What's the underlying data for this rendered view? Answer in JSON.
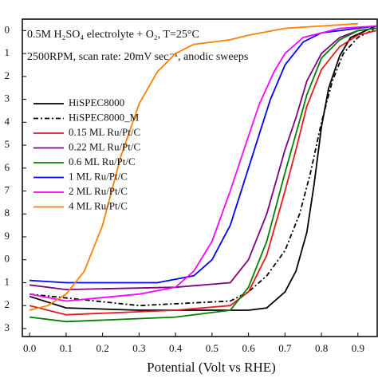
{
  "chart_data": {
    "type": "line",
    "annotations": [
      "0.5M H₂SO₄ electrolyte + O₂, T=25°C",
      "2500RPM, scan rate: 20mV sec⁻¹, anodic sweeps"
    ],
    "x_label": "Potential (Volt vs RHE)",
    "xlim": [
      -0.02,
      0.955
    ],
    "ylim": [
      -1.335,
      0.05
    ],
    "xticks": [
      {
        "value": 0,
        "label": "0.0"
      },
      0.1,
      0.2,
      0.3,
      0.4,
      0.5,
      0.6,
      0.7,
      0.8,
      0.9
    ],
    "yticks": [
      0,
      {
        "value": -0.1,
        "label": "1"
      },
      {
        "value": -0.2,
        "label": "2"
      },
      {
        "value": -0.3,
        "label": "3"
      },
      {
        "value": -0.4,
        "label": "4"
      },
      {
        "value": -0.5,
        "label": "5"
      },
      {
        "value": -0.6,
        "label": "6"
      },
      {
        "value": -0.7,
        "label": "7"
      },
      {
        "value": -0.8,
        "label": "8"
      },
      {
        "value": -0.9,
        "label": "9"
      },
      {
        "value": -1.0,
        "label": "0"
      },
      {
        "value": -1.1,
        "label": "1"
      },
      {
        "value": -1.2,
        "label": "2"
      },
      {
        "value": -1.3,
        "label": "3"
      }
    ],
    "legend": "center-left",
    "series": [
      {
        "name": "HiSPEC8000",
        "color": "#000000",
        "linestyle": "solid",
        "x": [
          0,
          0.1,
          0.3,
          0.6,
          0.65,
          0.7,
          0.73,
          0.76,
          0.78,
          0.8,
          0.82,
          0.85,
          0.88,
          0.95
        ],
        "values": [
          -1.16,
          -1.21,
          -1.22,
          -1.22,
          -1.21,
          -1.14,
          -1.05,
          -0.88,
          -0.67,
          -0.42,
          -0.25,
          -0.11,
          -0.03,
          0.02
        ]
      },
      {
        "name": "HiSPEC8000_M",
        "color": "#000000",
        "linestyle": "dashdot",
        "x": [
          0,
          0.3,
          0.55,
          0.6,
          0.65,
          0.7,
          0.74,
          0.77,
          0.8,
          0.83,
          0.86,
          0.9,
          0.95
        ],
        "values": [
          -1.15,
          -1.2,
          -1.18,
          -1.14,
          -1.07,
          -0.96,
          -0.8,
          -0.62,
          -0.4,
          -0.22,
          -0.1,
          -0.03,
          0.01
        ]
      },
      {
        "name": "0.15 ML Ru/Pt/C",
        "color": "#e41a1c",
        "linestyle": "solid",
        "x": [
          0,
          0.1,
          0.4,
          0.55,
          0.6,
          0.65,
          0.7,
          0.73,
          0.76,
          0.8,
          0.85,
          0.9,
          0.95
        ],
        "values": [
          -1.2,
          -1.24,
          -1.22,
          -1.2,
          -1.14,
          -0.98,
          -0.7,
          -0.52,
          -0.33,
          -0.17,
          -0.07,
          -0.02,
          0
        ]
      },
      {
        "name": "0.22 ML Ru/Pt/C",
        "color": "#800080",
        "linestyle": "solid",
        "x": [
          0,
          0.1,
          0.4,
          0.55,
          0.6,
          0.65,
          0.7,
          0.73,
          0.76,
          0.8,
          0.85,
          0.9,
          0.95
        ],
        "values": [
          -1.11,
          -1.13,
          -1.12,
          -1.1,
          -1.0,
          -0.8,
          -0.52,
          -0.38,
          -0.22,
          -0.1,
          -0.03,
          0,
          0.01
        ]
      },
      {
        "name": "0.6 ML Ru/Pt/C",
        "color": "#008000",
        "linestyle": "solid",
        "x": [
          0,
          0.1,
          0.4,
          0.55,
          0.6,
          0.65,
          0.7,
          0.73,
          0.76,
          0.8,
          0.85,
          0.9,
          0.95
        ],
        "values": [
          -1.25,
          -1.27,
          -1.25,
          -1.22,
          -1.12,
          -0.92,
          -0.62,
          -0.45,
          -0.28,
          -0.12,
          -0.04,
          0,
          0.01
        ]
      },
      {
        "name": "1 ML Ru/Pt/C",
        "color": "#0000ff",
        "linestyle": "solid",
        "x": [
          0,
          0.1,
          0.35,
          0.45,
          0.5,
          0.55,
          0.6,
          0.63,
          0.66,
          0.7,
          0.75,
          0.8,
          0.9,
          0.95
        ],
        "values": [
          -1.09,
          -1.1,
          -1.1,
          -1.07,
          -1.0,
          -0.85,
          -0.6,
          -0.45,
          -0.3,
          -0.15,
          -0.05,
          -0.01,
          0.01,
          0.02
        ]
      },
      {
        "name": "2 ML Ru/Pt/C",
        "color": "#ff00ff",
        "linestyle": "solid",
        "x": [
          0,
          0.1,
          0.3,
          0.4,
          0.45,
          0.5,
          0.55,
          0.6,
          0.63,
          0.67,
          0.7,
          0.75,
          0.85,
          0.95
        ],
        "values": [
          -1.15,
          -1.18,
          -1.15,
          -1.12,
          -1.05,
          -0.92,
          -0.7,
          -0.46,
          -0.32,
          -0.18,
          -0.1,
          -0.03,
          0.01,
          0.02
        ]
      },
      {
        "name": "4 ML Ru/Pt/C",
        "color": "#ff8000",
        "linestyle": "solid",
        "x": [
          0,
          0.05,
          0.1,
          0.15,
          0.2,
          0.25,
          0.3,
          0.35,
          0.4,
          0.45,
          0.55,
          0.6,
          0.7,
          0.8,
          0.9
        ],
        "values": [
          -1.22,
          -1.2,
          -1.15,
          -1.05,
          -0.85,
          -0.55,
          -0.32,
          -0.18,
          -0.1,
          -0.06,
          -0.04,
          -0.02,
          0.01,
          0.02,
          0.03
        ]
      }
    ]
  }
}
